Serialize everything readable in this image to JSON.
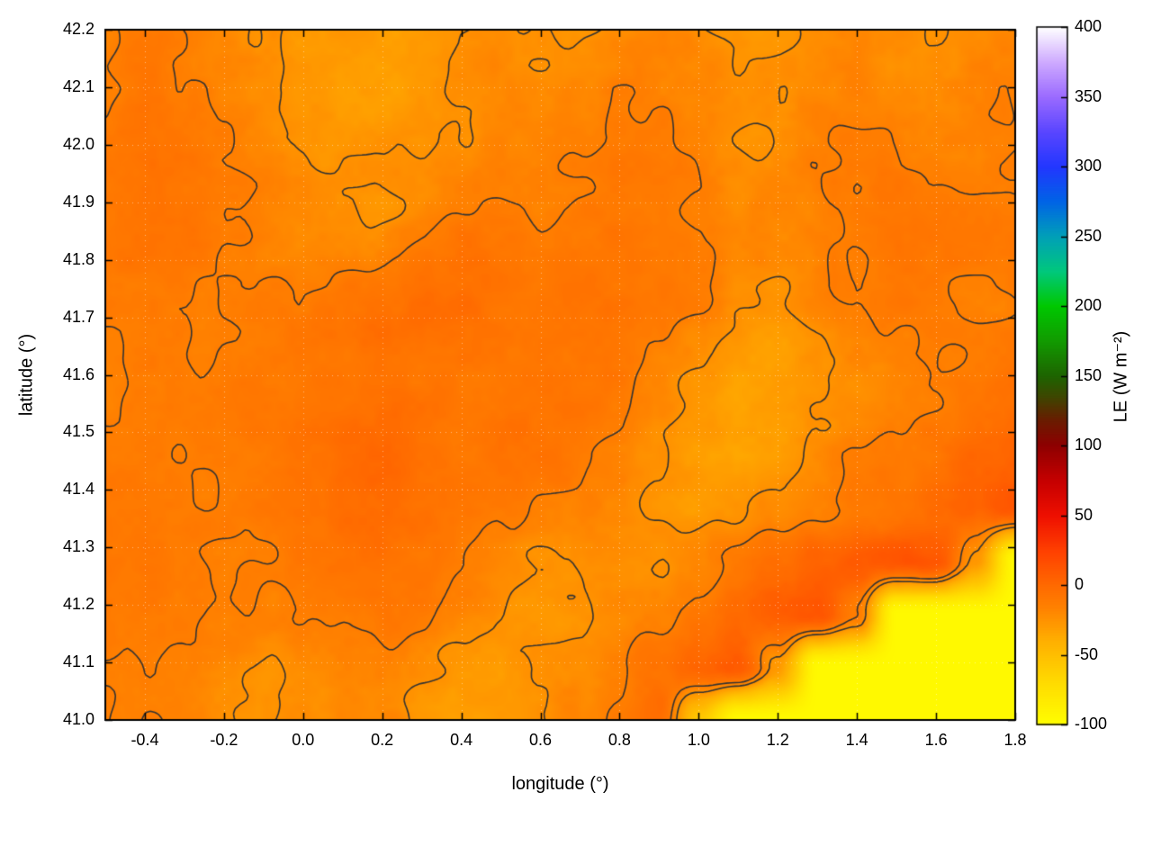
{
  "chart_data": {
    "type": "heatmap",
    "title": "",
    "xlabel": "longitude (°)",
    "ylabel": "latitude (°)",
    "x_range": [
      -0.5,
      1.8
    ],
    "y_range": [
      41.0,
      42.2
    ],
    "x_tick_values": [
      -0.4,
      -0.2,
      0.0,
      0.2,
      0.4,
      0.6,
      0.8,
      1.0,
      1.2,
      1.4,
      1.6,
      1.8
    ],
    "x_tick_labels": [
      "-0.4",
      "-0.2",
      "0.0",
      "0.2",
      "0.4",
      "0.6",
      "0.8",
      "1.0",
      "1.2",
      "1.4",
      "1.6",
      "1.8"
    ],
    "y_tick_values": [
      41.0,
      41.1,
      41.2,
      41.3,
      41.4,
      41.5,
      41.6,
      41.7,
      41.8,
      41.9,
      42.0,
      42.1,
      42.2
    ],
    "y_tick_labels": [
      "41.0",
      "41.1",
      "41.2",
      "41.3",
      "41.4",
      "41.5",
      "41.6",
      "41.7",
      "41.8",
      "41.9",
      "42.0",
      "42.1",
      "42.2"
    ],
    "grid": true,
    "legend": "none",
    "colorbar": {
      "label": "LE (W m⁻²)",
      "position": "right",
      "min": -100,
      "max": 400,
      "tick_values": [
        -100,
        -50,
        0,
        50,
        100,
        150,
        200,
        250,
        300,
        350,
        400
      ],
      "tick_labels": [
        "-100",
        "-50",
        "0",
        "50",
        "100",
        "150",
        "200",
        "250",
        "300",
        "350",
        "400"
      ],
      "stops": [
        [
          -100,
          "#ffff00"
        ],
        [
          -70,
          "#ffdc00"
        ],
        [
          -40,
          "#ffb000"
        ],
        [
          -15,
          "#ff8000"
        ],
        [
          0,
          "#ff6a00"
        ],
        [
          25,
          "#ff4000"
        ],
        [
          50,
          "#ef1000"
        ],
        [
          75,
          "#c60000"
        ],
        [
          100,
          "#8f0000"
        ],
        [
          118,
          "#6a1c00"
        ],
        [
          135,
          "#3f4600"
        ],
        [
          150,
          "#1e6400"
        ],
        [
          175,
          "#129b00"
        ],
        [
          200,
          "#00c800"
        ],
        [
          225,
          "#00c87d"
        ],
        [
          250,
          "#00a0b9"
        ],
        [
          275,
          "#0064e6"
        ],
        [
          300,
          "#2337ff"
        ],
        [
          325,
          "#5a46ff"
        ],
        [
          350,
          "#9b6bff"
        ],
        [
          375,
          "#cfabff"
        ],
        [
          400,
          "#ffffff"
        ]
      ]
    },
    "contour_levels": [
      -24,
      -14
    ],
    "contour_color": "#333333",
    "grid_values": {
      "comment": "Estimated LE (W m-2) field sampled on a 24x14 lon/lat grid; rows run north (42.2) to south (41.0), cols west (-0.5) to east (1.8); -95 = sea surface (bottom-right, bright yellow).",
      "nx": 24,
      "ny": 14,
      "lon_start": -0.5,
      "lon_step": 0.1,
      "lat_start": 42.2,
      "lat_step": -0.0923,
      "values": [
        [
          -15,
          -14,
          -16,
          -20,
          -26,
          -30,
          -28,
          -32,
          -30,
          -26,
          -22,
          -24,
          -26,
          -22,
          -20,
          -22,
          -24,
          -26,
          -22,
          -20,
          -22,
          -24,
          -22,
          -20
        ],
        [
          -13,
          -12,
          -15,
          -18,
          -24,
          -30,
          -32,
          -34,
          -32,
          -28,
          -24,
          -26,
          -22,
          -18,
          -20,
          -24,
          -26,
          -24,
          -20,
          -18,
          -20,
          -22,
          -20,
          -18
        ],
        [
          -12,
          -10,
          -12,
          -16,
          -20,
          -26,
          -30,
          -30,
          -28,
          -24,
          -20,
          -22,
          -18,
          -14,
          -16,
          -20,
          -24,
          -22,
          -18,
          -16,
          -14,
          -18,
          -20,
          -16
        ],
        [
          -10,
          -9,
          -10,
          -13,
          -17,
          -20,
          -24,
          -26,
          -22,
          -18,
          -15,
          -16,
          -13,
          -10,
          -12,
          -16,
          -20,
          -18,
          -15,
          -13,
          -12,
          -14,
          -16,
          -14
        ],
        [
          -9,
          -8,
          -10,
          -13,
          -15,
          -16,
          -18,
          -16,
          -13,
          -10,
          -9,
          -10,
          -9,
          -8,
          -11,
          -15,
          -18,
          -20,
          -16,
          -13,
          -11,
          -12,
          -14,
          -12
        ],
        [
          -11,
          -9,
          -11,
          -14,
          -13,
          -11,
          -9,
          -7,
          -6,
          -7,
          -8,
          -7,
          -6,
          -9,
          -13,
          -17,
          -21,
          -23,
          -19,
          -15,
          -12,
          -13,
          -15,
          -13
        ],
        [
          -13,
          -11,
          -13,
          -15,
          -11,
          -7,
          -5,
          -4,
          -5,
          -7,
          -6,
          -5,
          -8,
          -12,
          -17,
          -23,
          -27,
          -28,
          -24,
          -19,
          -15,
          -14,
          -13,
          -11
        ],
        [
          -14,
          -12,
          -14,
          -13,
          -9,
          -5,
          -3,
          -2,
          -4,
          -6,
          -5,
          -6,
          -10,
          -15,
          -21,
          -27,
          -30,
          -29,
          -25,
          -21,
          -16,
          -12,
          -8,
          -6
        ],
        [
          -13,
          -11,
          -12,
          -11,
          -9,
          -7,
          -4,
          -3,
          -5,
          -7,
          -8,
          -10,
          -14,
          -19,
          -25,
          -29,
          -30,
          -27,
          -23,
          -18,
          -13,
          -8,
          -2,
          2
        ],
        [
          -12,
          -10,
          -11,
          -13,
          -11,
          -9,
          -7,
          -5,
          -7,
          -9,
          -11,
          -14,
          -18,
          -22,
          -27,
          -30,
          -27,
          -22,
          -17,
          -12,
          -7,
          -1,
          5,
          10
        ],
        [
          -11,
          -9,
          -11,
          -14,
          -15,
          -13,
          -11,
          -9,
          -11,
          -14,
          -17,
          -21,
          -24,
          -26,
          -24,
          -18,
          -11,
          -4,
          3,
          9,
          13,
          11,
          -25,
          -95
        ],
        [
          -13,
          -11,
          -13,
          -17,
          -19,
          -17,
          -15,
          -13,
          -15,
          -19,
          -24,
          -27,
          -26,
          -22,
          -16,
          -8,
          1,
          9,
          13,
          -15,
          -95,
          -95,
          -95,
          -95
        ],
        [
          -14,
          -13,
          -15,
          -19,
          -23,
          -21,
          -19,
          -17,
          -21,
          -25,
          -27,
          -25,
          -21,
          -14,
          -6,
          3,
          10,
          -25,
          -95,
          -95,
          -95,
          -95,
          -95,
          -95
        ],
        [
          -15,
          -14,
          -17,
          -21,
          -25,
          -24,
          -21,
          -19,
          -24,
          -27,
          -25,
          -22,
          -17,
          -10,
          0,
          -55,
          -95,
          -95,
          -95,
          -95,
          -95,
          -95,
          -95,
          -95
        ]
      ]
    }
  }
}
